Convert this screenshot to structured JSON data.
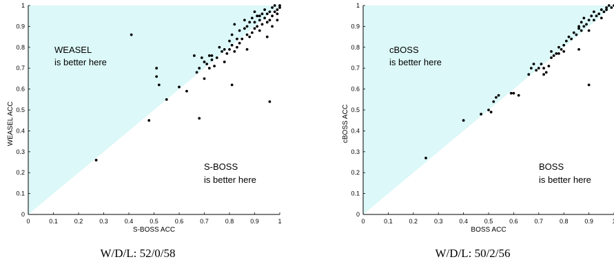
{
  "chart_data": [
    {
      "type": "scatter",
      "xlabel": "S-BOSS ACC",
      "ylabel": "WEASEL ACC",
      "xlim": [
        0,
        1
      ],
      "ylim": [
        0,
        1
      ],
      "xticks": [
        "0",
        "0.1",
        "0.2",
        "0.3",
        "0.4",
        "0.5",
        "0.6",
        "0.7",
        "0.8",
        "0.9",
        "1"
      ],
      "yticks": [
        "0",
        "0.1",
        "0.2",
        "0.3",
        "0.4",
        "0.5",
        "0.6",
        "0.7",
        "0.8",
        "0.9",
        "1"
      ],
      "upper_annotation": [
        "WEASEL",
        "is better here"
      ],
      "lower_annotation": [
        "S-BOSS",
        "is better here"
      ],
      "caption": "W/D/L: 52/0/58",
      "region_color": "#dcf8f8",
      "point_color": "#000000",
      "x": [
        0.27,
        0.41,
        0.48,
        0.51,
        0.51,
        0.52,
        0.55,
        0.6,
        0.63,
        0.66,
        0.67,
        0.68,
        0.69,
        0.7,
        0.7,
        0.71,
        0.72,
        0.72,
        0.73,
        0.74,
        0.75,
        0.76,
        0.77,
        0.78,
        0.79,
        0.8,
        0.8,
        0.81,
        0.81,
        0.82,
        0.82,
        0.83,
        0.83,
        0.84,
        0.84,
        0.85,
        0.86,
        0.86,
        0.87,
        0.87,
        0.88,
        0.88,
        0.89,
        0.89,
        0.9,
        0.9,
        0.9,
        0.91,
        0.91,
        0.92,
        0.92,
        0.93,
        0.93,
        0.94,
        0.94,
        0.95,
        0.95,
        0.96,
        0.96,
        0.97,
        0.97,
        0.98,
        0.98,
        0.99,
        0.99,
        1.0,
        1.0,
        0.96,
        0.81,
        0.68,
        0.73,
        0.78,
        0.87,
        0.92,
        0.95,
        0.97,
        0.99
      ],
      "y": [
        0.26,
        0.86,
        0.45,
        0.66,
        0.7,
        0.62,
        0.55,
        0.61,
        0.59,
        0.76,
        0.68,
        0.7,
        0.75,
        0.73,
        0.65,
        0.72,
        0.76,
        0.7,
        0.74,
        0.71,
        0.75,
        0.8,
        0.78,
        0.73,
        0.77,
        0.79,
        0.83,
        0.81,
        0.86,
        0.78,
        0.91,
        0.84,
        0.8,
        0.88,
        0.82,
        0.84,
        0.89,
        0.93,
        0.86,
        0.9,
        0.92,
        0.85,
        0.87,
        0.94,
        0.89,
        0.92,
        0.97,
        0.9,
        0.95,
        0.93,
        0.88,
        0.96,
        0.91,
        0.94,
        0.98,
        0.92,
        0.96,
        0.97,
        0.93,
        0.95,
        0.99,
        0.97,
        1.0,
        0.98,
        0.96,
        0.99,
        1.0,
        0.54,
        0.62,
        0.46,
        0.76,
        0.79,
        0.79,
        0.95,
        0.85,
        0.9,
        0.93
      ]
    },
    {
      "type": "scatter",
      "xlabel": "BOSS ACC",
      "ylabel": "cBOSS ACC",
      "xlim": [
        0,
        1
      ],
      "ylim": [
        0,
        1
      ],
      "xticks": [
        "0",
        "0.1",
        "0.2",
        "0.3",
        "0.4",
        "0.5",
        "0.6",
        "0.7",
        "0.8",
        "0.9",
        "1"
      ],
      "yticks": [
        "0",
        "0.1",
        "0.2",
        "0.3",
        "0.4",
        "0.5",
        "0.6",
        "0.7",
        "0.8",
        "0.9",
        "1"
      ],
      "upper_annotation": [
        "cBOSS",
        "is better here"
      ],
      "lower_annotation": [
        "BOSS",
        "is better here"
      ],
      "caption": "W/D/L: 50/2/56",
      "region_color": "#dcf8f8",
      "point_color": "#000000",
      "x": [
        0.25,
        0.4,
        0.47,
        0.5,
        0.51,
        0.52,
        0.53,
        0.54,
        0.59,
        0.6,
        0.62,
        0.66,
        0.67,
        0.68,
        0.69,
        0.7,
        0.71,
        0.72,
        0.73,
        0.74,
        0.75,
        0.75,
        0.76,
        0.77,
        0.78,
        0.79,
        0.8,
        0.8,
        0.81,
        0.82,
        0.83,
        0.84,
        0.85,
        0.86,
        0.86,
        0.87,
        0.87,
        0.88,
        0.88,
        0.89,
        0.9,
        0.9,
        0.91,
        0.92,
        0.92,
        0.93,
        0.94,
        0.95,
        0.95,
        0.96,
        0.97,
        0.97,
        0.98,
        0.99,
        1.0,
        0.9,
        0.86,
        0.78,
        0.72
      ],
      "y": [
        0.27,
        0.45,
        0.48,
        0.5,
        0.49,
        0.54,
        0.56,
        0.57,
        0.58,
        0.58,
        0.57,
        0.67,
        0.7,
        0.72,
        0.69,
        0.7,
        0.72,
        0.67,
        0.68,
        0.71,
        0.75,
        0.78,
        0.76,
        0.77,
        0.8,
        0.79,
        0.81,
        0.78,
        0.83,
        0.85,
        0.84,
        0.87,
        0.86,
        0.89,
        0.9,
        0.88,
        0.92,
        0.9,
        0.94,
        0.91,
        0.93,
        0.88,
        0.95,
        0.93,
        0.97,
        0.95,
        0.96,
        0.98,
        0.94,
        0.97,
        0.99,
        0.98,
        1.0,
        0.99,
        1.0,
        0.62,
        0.79,
        0.77,
        0.7
      ]
    }
  ]
}
